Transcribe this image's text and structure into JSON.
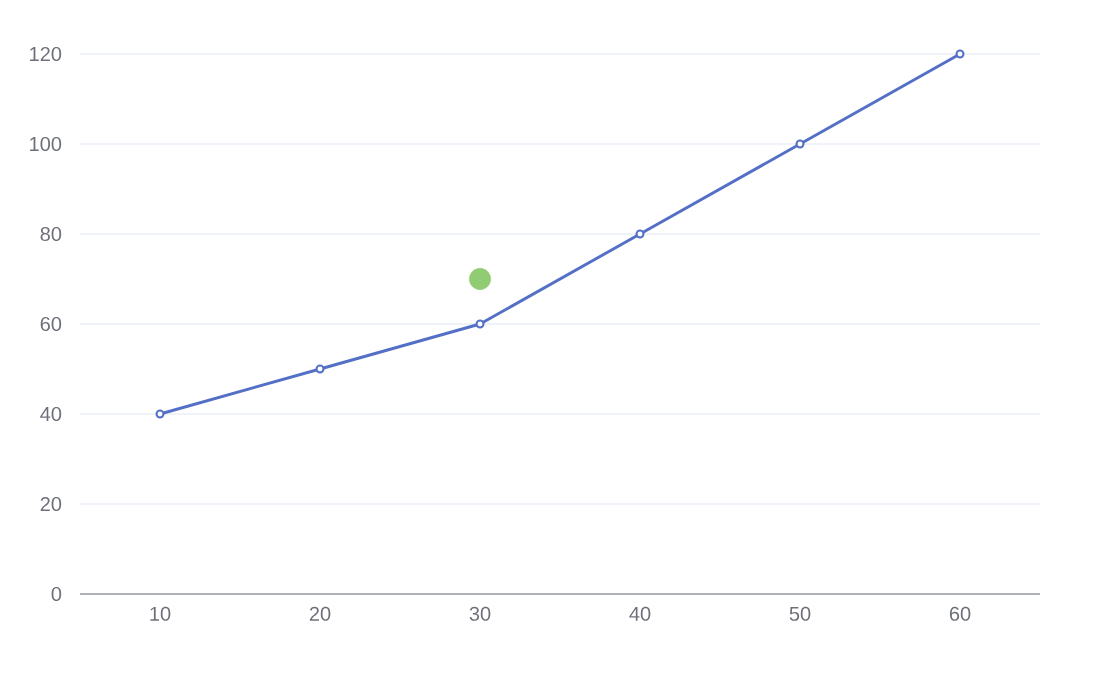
{
  "chart_data": {
    "type": "line",
    "categories": [
      "10",
      "20",
      "30",
      "40",
      "50",
      "60"
    ],
    "series": [
      {
        "color": "#5470c6",
        "values": [
          40,
          50,
          60,
          80,
          100,
          120
        ]
      },
      {
        "type": "scatter",
        "color": "#91cc75",
        "x": [
          "30"
        ],
        "values": [
          70
        ]
      }
    ],
    "ylim": [
      0,
      120
    ],
    "yticks": [
      0,
      20,
      40,
      60,
      80,
      100,
      120
    ],
    "grid": "y",
    "marker": "circle"
  }
}
